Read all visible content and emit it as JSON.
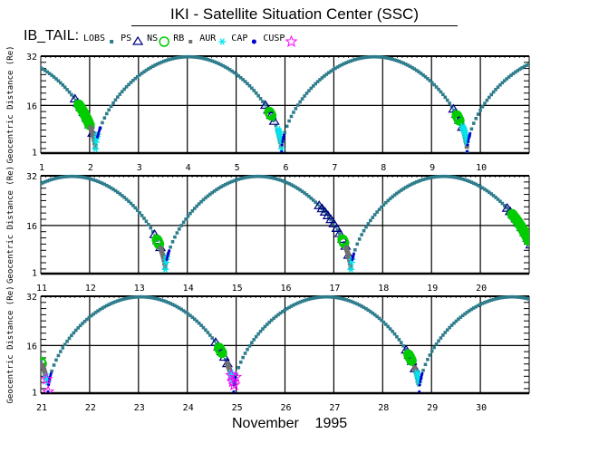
{
  "title": "IKI - Satellite Situation Center (SSC)",
  "legend_prefix": "IB_TAIL:",
  "legend": [
    {
      "label": "LOBS",
      "symbol": "small-square",
      "color": "#2e7d8c"
    },
    {
      "label": "PS",
      "symbol": "triangle",
      "color": "#000080"
    },
    {
      "label": "NS",
      "symbol": "circle",
      "color": "#00cc00"
    },
    {
      "label": "RB",
      "symbol": "small-square",
      "color": "#707070"
    },
    {
      "label": "AUR",
      "symbol": "asterisk",
      "color": "#00e5ee"
    },
    {
      "label": "CAP",
      "symbol": "dot",
      "color": "#0000cc"
    },
    {
      "label": "CUSP",
      "symbol": "star",
      "color": "#ff00ff"
    }
  ],
  "colors": {
    "orbit": "#2e7d8c",
    "triangle": "#000080",
    "circle": "#00cc00",
    "grey": "#707070",
    "cyan": "#00e5ee",
    "blue": "#0000cc",
    "magenta": "#ff00ff"
  },
  "month_label": "November    1995",
  "chart_data": [
    {
      "type": "scatter",
      "title": "IKI - Satellite Situation Center (SSC)",
      "xlabel": "November 1995",
      "ylabel": "Geocentric Distance (Re)",
      "xlim": [
        1,
        11
      ],
      "ylim": [
        0.5,
        32
      ],
      "yticks": [
        1,
        16,
        32
      ],
      "xticks": [
        1,
        2,
        3,
        4,
        5,
        6,
        7,
        8,
        9,
        10
      ],
      "grid": true,
      "perigees": [
        2.12,
        5.93,
        9.73
      ],
      "apogees": [
        4.02,
        7.83
      ],
      "events": [
        {
          "near_perigee": 2.12,
          "ns_start": 1.7,
          "rb": [
            1.78,
            2.0
          ],
          "aur": [
            2.02,
            2.12
          ],
          "cap": [
            2.12,
            2.16
          ],
          "blue": [
            2.16,
            2.22
          ],
          "cusp": null
        },
        {
          "near_perigee": 5.93,
          "ns_start": 5.6,
          "rb": [
            5.68,
            5.72
          ],
          "aur": [
            5.85,
            5.93
          ],
          "cap": [
            5.86,
            5.93
          ],
          "blue": [
            5.93,
            5.98
          ],
          "cusp": null
        },
        {
          "near_perigee": 9.73,
          "ns_start": 9.45,
          "rb": [
            9.52,
            9.57
          ],
          "aur": [
            9.64,
            9.73
          ],
          "cap": [
            9.64,
            9.72
          ],
          "blue": [
            9.73,
            9.79
          ],
          "cusp": null
        }
      ]
    },
    {
      "type": "scatter",
      "xlabel": "November 1995",
      "ylabel": "Geocentric Distance (Re)",
      "xlim": [
        11,
        21
      ],
      "ylim": [
        0.5,
        32
      ],
      "yticks": [
        1,
        16,
        32
      ],
      "xticks": [
        11,
        12,
        13,
        14,
        15,
        16,
        17,
        18,
        19,
        20
      ],
      "grid": true,
      "perigees": [
        13.55,
        17.35
      ],
      "apogees": [
        11.65,
        15.45,
        19.25
      ],
      "events": [
        {
          "near_perigee": 13.55,
          "ns_start": 13.33,
          "rb": [
            13.38,
            13.42
          ],
          "aur": [
            13.45,
            13.55
          ],
          "cap": [
            13.55,
            13.58
          ],
          "blue": [
            13.58,
            13.63
          ],
          "cusp": null
        },
        {
          "near_perigee": 17.35,
          "ns_start": 16.7,
          "rb": [
            17.18,
            17.22
          ],
          "aur": [
            17.25,
            17.35
          ],
          "cap": [
            17.35,
            17.38
          ],
          "blue": [
            17.38,
            17.42
          ],
          "cusp": null
        },
        {
          "near_perigee": 21.15,
          "ns_start": 20.55,
          "rb": [
            20.65,
            21.0
          ],
          "aur": null,
          "cap": null,
          "blue": null,
          "cusp": null
        }
      ]
    },
    {
      "type": "scatter",
      "xlabel": "November 1995",
      "ylabel": "Geocentric Distance (Re)",
      "xlim": [
        21,
        31
      ],
      "ylim": [
        0.5,
        32
      ],
      "yticks": [
        1,
        16,
        32
      ],
      "xticks": [
        21,
        22,
        23,
        24,
        25,
        26,
        27,
        28,
        29,
        30
      ],
      "grid": true,
      "perigees": [
        21.15,
        24.95,
        28.75
      ],
      "apogees": [
        23.05,
        26.85,
        30.65
      ],
      "events": [
        {
          "near_perigee": 21.15,
          "ns_start": null,
          "rb": [
            21.0,
            21.03
          ],
          "aur": [
            21.03,
            21.12
          ],
          "cap": [
            21.12,
            21.15
          ],
          "blue": [
            21.15,
            21.22
          ],
          "cusp": [
            21.12,
            21.18
          ]
        },
        {
          "near_perigee": 24.95,
          "ns_start": 24.58,
          "rb": [
            24.65,
            24.72
          ],
          "aur": [
            24.82,
            24.92
          ],
          "cap": [
            24.9,
            24.95
          ],
          "blue": [
            24.95,
            25.0
          ],
          "cusp": [
            24.9,
            25.02
          ]
        },
        {
          "near_perigee": 28.75,
          "ns_start": 28.48,
          "rb": [
            28.53,
            28.6
          ],
          "aur": [
            28.65,
            28.74
          ],
          "cap": [
            28.7,
            28.75
          ],
          "blue": [
            28.75,
            28.82
          ],
          "cusp": null
        }
      ]
    }
  ]
}
